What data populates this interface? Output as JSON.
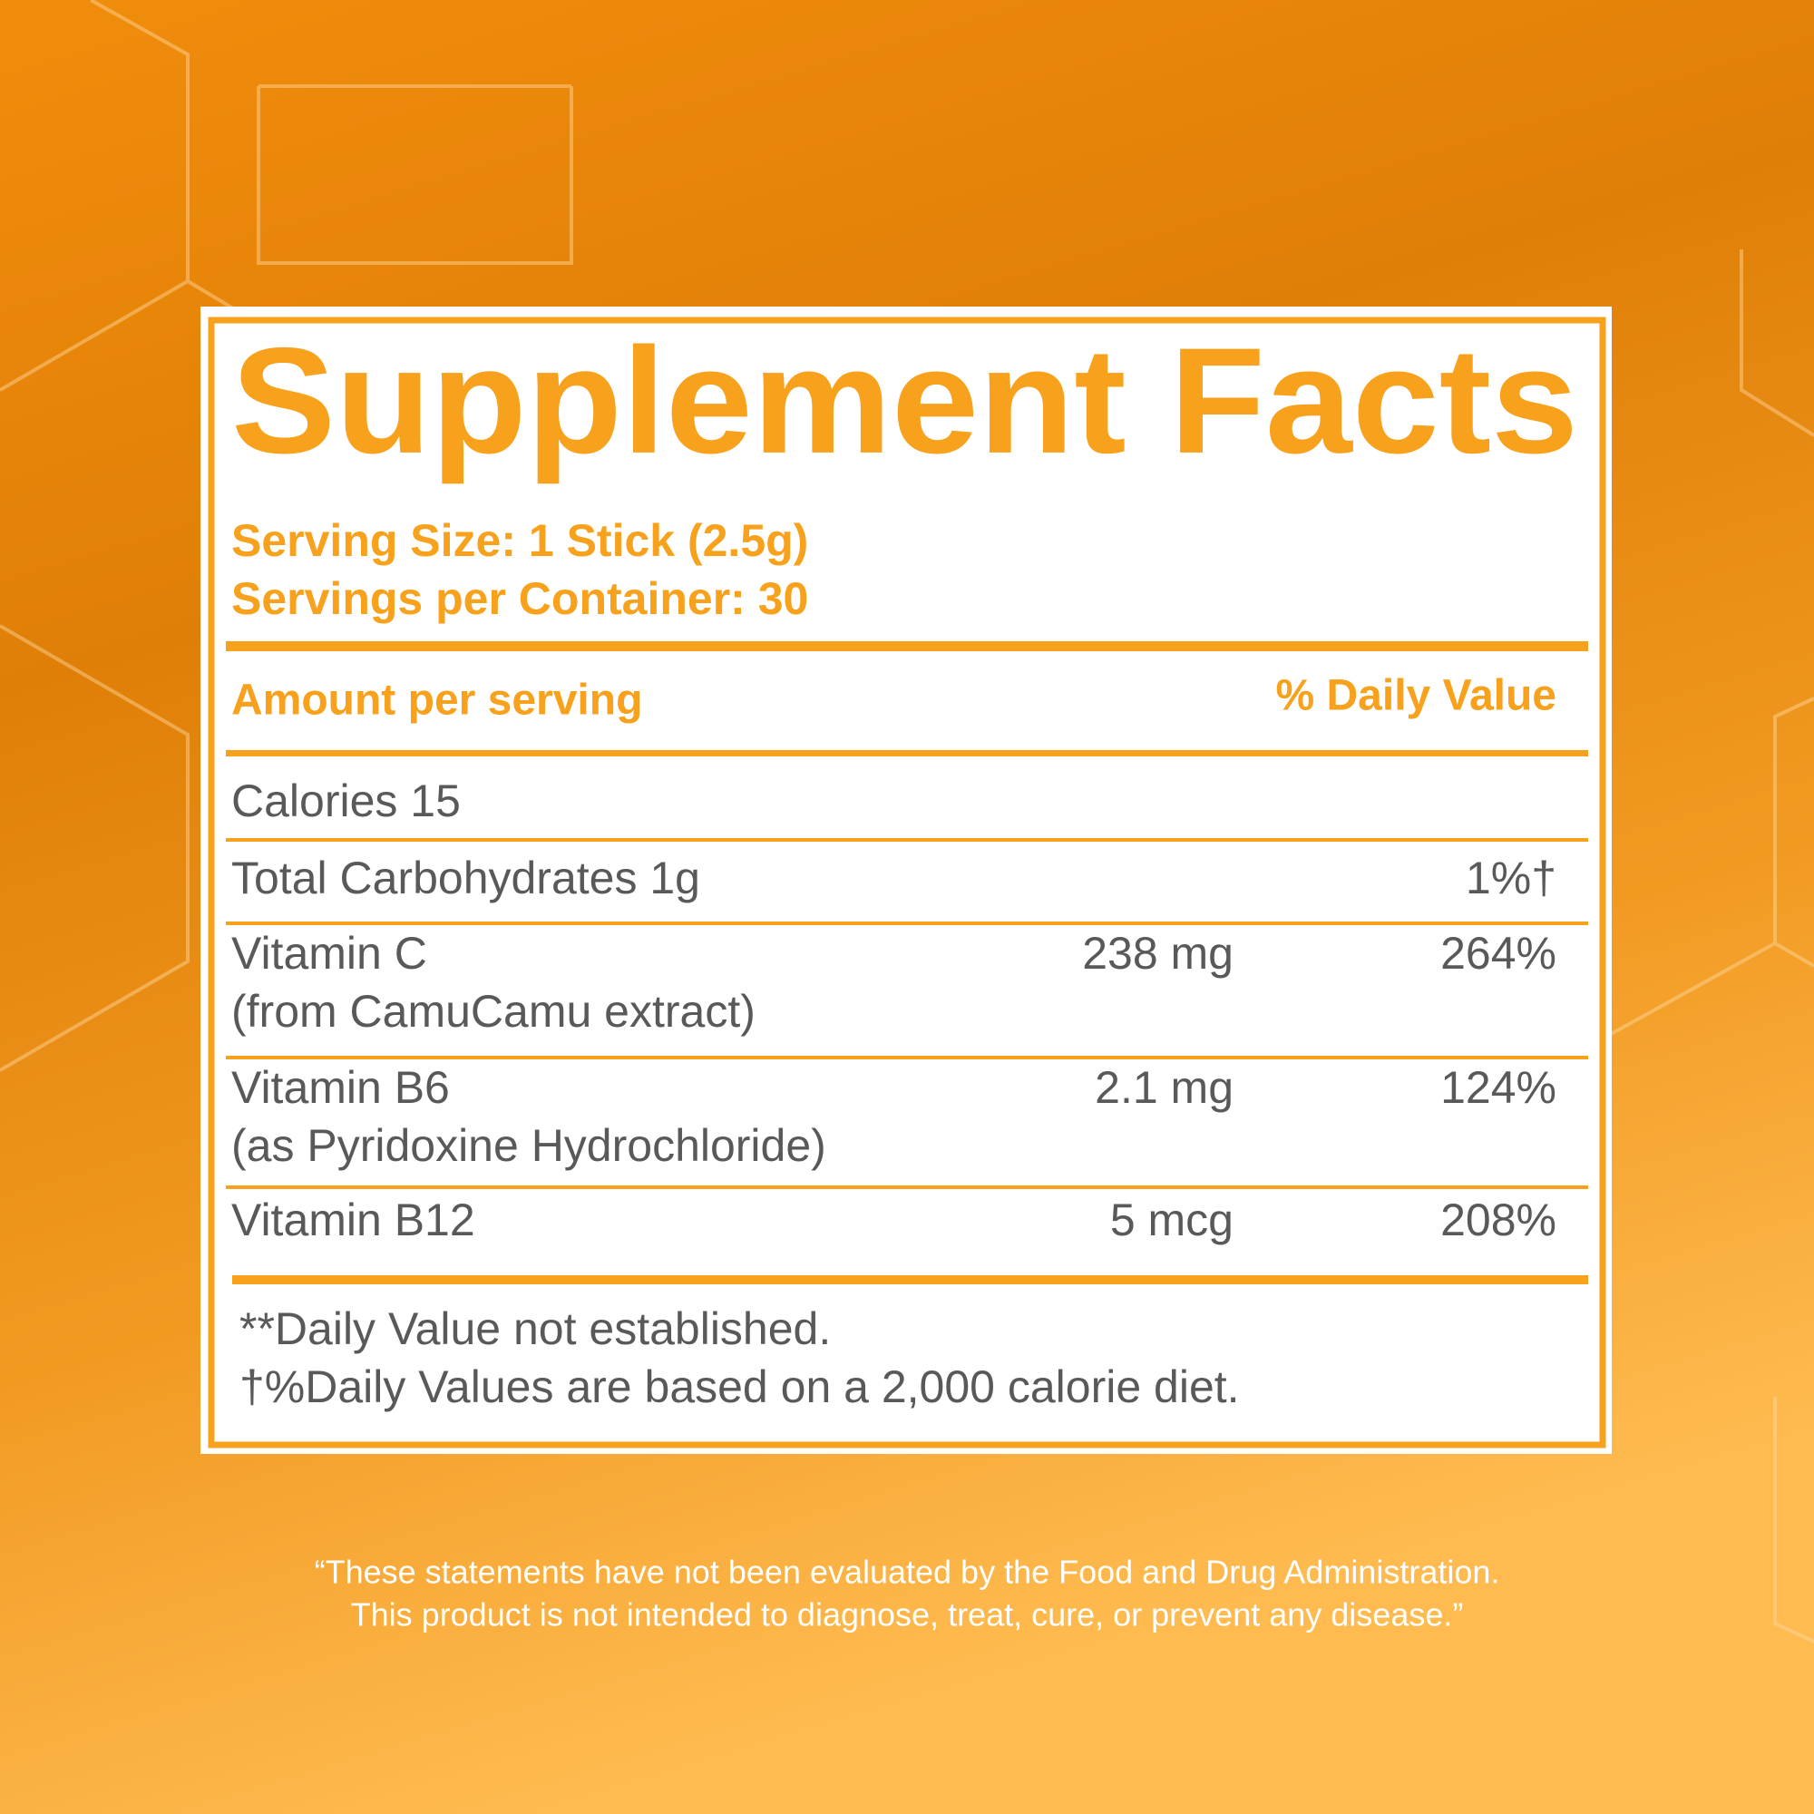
{
  "label": {
    "title": "Supplement Facts",
    "serving_size": "Serving Size: 1 Stick (2.5g)",
    "servings_per_container": "Servings per Container: 30",
    "header": {
      "amount": "Amount per serving",
      "daily_value": "% Daily Value"
    },
    "rows": [
      {
        "name": "Calories 15"
      },
      {
        "name": "Total Carbohydrates 1g",
        "daily_value": "1%†"
      },
      {
        "name": "Vitamin C",
        "source": "(from CamuCamu extract)",
        "amount": "238 mg",
        "daily_value": "264%"
      },
      {
        "name": "Vitamin B6",
        "source": "(as Pyridoxine Hydrochloride)",
        "amount": "2.1 mg",
        "daily_value": "124%"
      },
      {
        "name": "Vitamin B12",
        "amount": "5 mcg",
        "daily_value": "208%"
      }
    ],
    "footnotes": [
      "**Daily Value not established.",
      "†%Daily Values are based on a 2,000 calorie diet."
    ]
  },
  "disclaimer": [
    "“These statements have not been evaluated by the Food and Drug Administration.",
    "This product is not intended to diagnose, treat, cure, or prevent any disease.”"
  ]
}
